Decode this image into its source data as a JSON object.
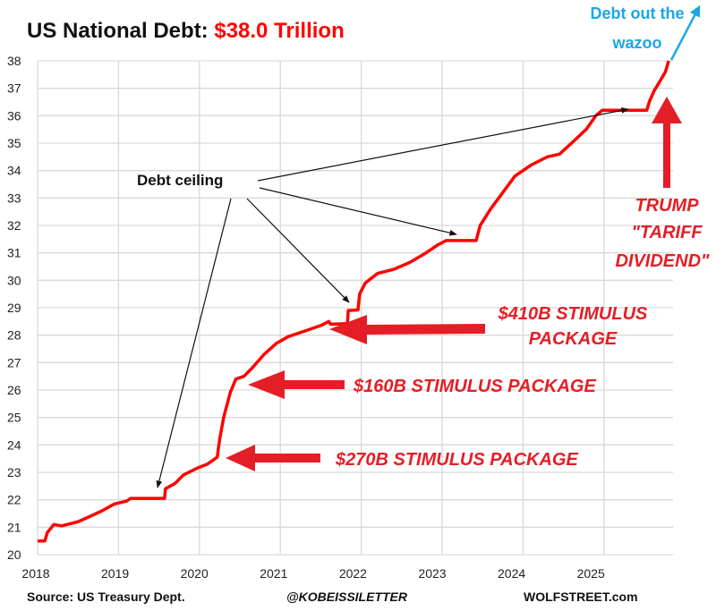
{
  "chart_data": {
    "type": "line",
    "title": "US National Debt: ",
    "title_highlight": "$38.0 Trillion",
    "xlabel": "",
    "ylabel": "",
    "xlim": [
      2018,
      2025.85
    ],
    "ylim": [
      20,
      38
    ],
    "grid": true,
    "x_ticks": [
      "2018",
      "2019",
      "2020",
      "2021",
      "2022",
      "2023",
      "2024",
      "2025"
    ],
    "y_ticks": [
      "20",
      "21",
      "22",
      "23",
      "24",
      "25",
      "26",
      "27",
      "28",
      "29",
      "30",
      "31",
      "32",
      "33",
      "34",
      "35",
      "36",
      "37",
      "38"
    ],
    "series": [
      {
        "color": "#ff0000",
        "points": [
          [
            2018.0,
            20.5
          ],
          [
            2018.09,
            20.5
          ],
          [
            2018.12,
            20.8
          ],
          [
            2018.2,
            21.1
          ],
          [
            2018.3,
            21.05
          ],
          [
            2018.5,
            21.2
          ],
          [
            2018.65,
            21.4
          ],
          [
            2018.8,
            21.6
          ],
          [
            2018.95,
            21.85
          ],
          [
            2019.1,
            21.95
          ],
          [
            2019.15,
            22.05
          ],
          [
            2019.57,
            22.05
          ],
          [
            2019.58,
            22.4
          ],
          [
            2019.7,
            22.6
          ],
          [
            2019.8,
            22.9
          ],
          [
            2019.97,
            23.15
          ],
          [
            2020.1,
            23.3
          ],
          [
            2020.22,
            23.55
          ],
          [
            2020.25,
            24.2
          ],
          [
            2020.3,
            25.0
          ],
          [
            2020.38,
            25.9
          ],
          [
            2020.45,
            26.4
          ],
          [
            2020.55,
            26.5
          ],
          [
            2020.65,
            26.8
          ],
          [
            2020.8,
            27.3
          ],
          [
            2020.95,
            27.7
          ],
          [
            2021.1,
            27.95
          ],
          [
            2021.3,
            28.15
          ],
          [
            2021.5,
            28.35
          ],
          [
            2021.6,
            28.5
          ],
          [
            2021.62,
            28.4
          ],
          [
            2021.83,
            28.42
          ],
          [
            2021.84,
            28.9
          ],
          [
            2021.96,
            28.92
          ],
          [
            2021.98,
            29.5
          ],
          [
            2022.05,
            29.9
          ],
          [
            2022.2,
            30.25
          ],
          [
            2022.4,
            30.4
          ],
          [
            2022.6,
            30.65
          ],
          [
            2022.8,
            31.0
          ],
          [
            2022.95,
            31.3
          ],
          [
            2023.05,
            31.45
          ],
          [
            2023.42,
            31.45
          ],
          [
            2023.47,
            32.0
          ],
          [
            2023.6,
            32.6
          ],
          [
            2023.75,
            33.2
          ],
          [
            2023.9,
            33.8
          ],
          [
            2024.1,
            34.2
          ],
          [
            2024.3,
            34.5
          ],
          [
            2024.45,
            34.6
          ],
          [
            2024.6,
            35.0
          ],
          [
            2024.78,
            35.5
          ],
          [
            2024.9,
            36.0
          ],
          [
            2024.98,
            36.2
          ],
          [
            2025.53,
            36.2
          ],
          [
            2025.56,
            36.5
          ],
          [
            2025.62,
            36.9
          ],
          [
            2025.7,
            37.3
          ],
          [
            2025.76,
            37.6
          ],
          [
            2025.8,
            38.0
          ]
        ]
      }
    ],
    "annotations": {
      "debt_ceiling": "Debt ceiling",
      "stimulus_410_line1": "$410B STIMULUS",
      "stimulus_410_line2": "PACKAGE",
      "stimulus_160": "$160B STIMULUS PACKAGE",
      "stimulus_270": "$270B STIMULUS PACKAGE",
      "trump_line1": "TRUMP",
      "trump_line2": "\"TARIFF",
      "trump_line3": "DIVIDEND\"",
      "wazoo_line1": "Debt out the",
      "wazoo_line2": "wazoo"
    },
    "colors": {
      "line": "#ff0000",
      "callout": "#e41e26",
      "wazoo": "#1aa7e6",
      "grid": "#d9d9d9"
    }
  },
  "footer": {
    "source": "Source: US Treasury Dept.",
    "handle": "@KOBEISSILETTER",
    "site": "WOLFSTREET.com"
  }
}
